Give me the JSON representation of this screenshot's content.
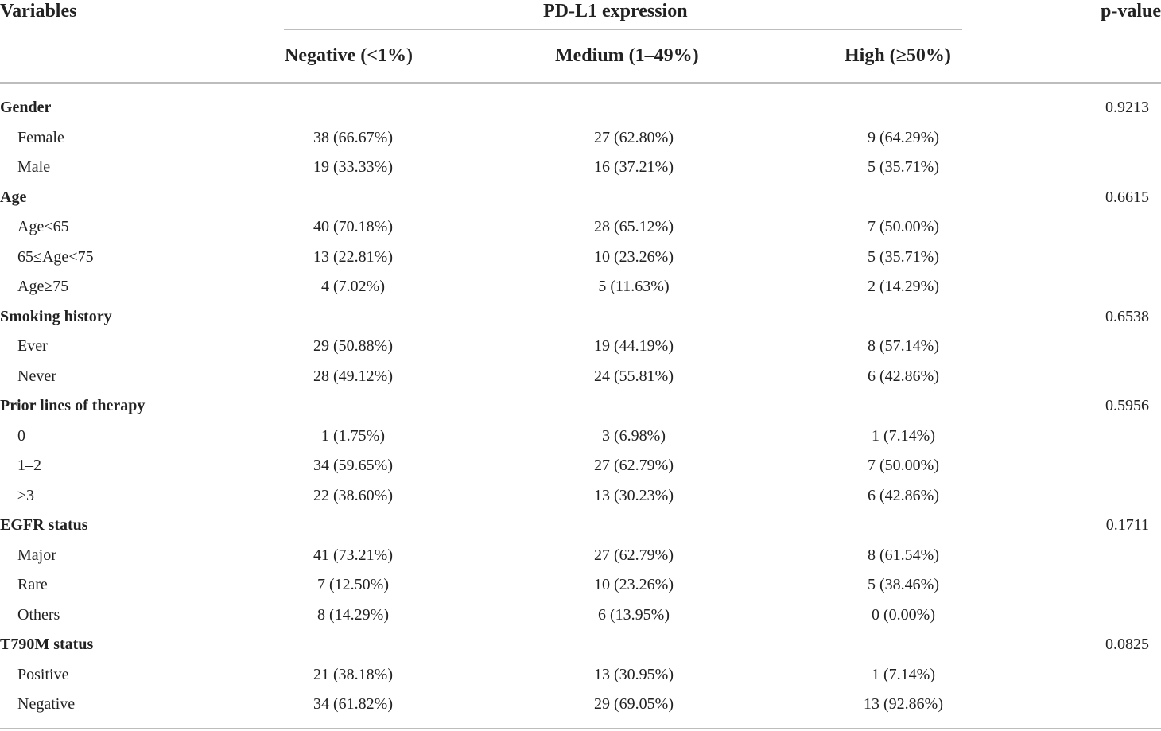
{
  "header": {
    "variables": "Variables",
    "group_title": "PD-L1 expression",
    "p_value": "p-value",
    "columns": [
      "Negative (<1%)",
      "Medium (1–49%)",
      "High (≥50%)"
    ]
  },
  "rows": [
    {
      "type": "group",
      "label": "Gender",
      "p": "0.9213"
    },
    {
      "type": "item",
      "label": "Female",
      "values": [
        "38 (66.67%)",
        "27 (62.80%)",
        "9 (64.29%)"
      ]
    },
    {
      "type": "item",
      "label": "Male",
      "values": [
        "19 (33.33%)",
        "16 (37.21%)",
        "5 (35.71%)"
      ]
    },
    {
      "type": "group",
      "label": "Age",
      "p": "0.6615"
    },
    {
      "type": "item",
      "label": "Age<65",
      "values": [
        "40 (70.18%)",
        "28 (65.12%)",
        "7 (50.00%)"
      ]
    },
    {
      "type": "item",
      "label": "65≤Age<75",
      "values": [
        "13 (22.81%)",
        "10 (23.26%)",
        "5 (35.71%)"
      ]
    },
    {
      "type": "item",
      "label": "Age≥75",
      "values": [
        "4 (7.02%)",
        "5 (11.63%)",
        "2 (14.29%)"
      ]
    },
    {
      "type": "group",
      "label": "Smoking history",
      "p": "0.6538"
    },
    {
      "type": "item",
      "label": "Ever",
      "values": [
        "29 (50.88%)",
        "19 (44.19%)",
        "8 (57.14%)"
      ]
    },
    {
      "type": "item",
      "label": "Never",
      "values": [
        "28 (49.12%)",
        "24 (55.81%)",
        "6 (42.86%)"
      ]
    },
    {
      "type": "group",
      "label": "Prior lines of therapy",
      "p": "0.5956"
    },
    {
      "type": "item",
      "label": "0",
      "values": [
        "1 (1.75%)",
        "3 (6.98%)",
        "1 (7.14%)"
      ]
    },
    {
      "type": "item",
      "label": "1–2",
      "values": [
        "34 (59.65%)",
        "27 (62.79%)",
        "7 (50.00%)"
      ]
    },
    {
      "type": "item",
      "label": "≥3",
      "values": [
        "22 (38.60%)",
        "13 (30.23%)",
        "6 (42.86%)"
      ]
    },
    {
      "type": "group",
      "label": "EGFR status",
      "p": "0.1711"
    },
    {
      "type": "item",
      "label": "Major",
      "values": [
        "41 (73.21%)",
        "27 (62.79%)",
        "8 (61.54%)"
      ]
    },
    {
      "type": "item",
      "label": "Rare",
      "values": [
        "7 (12.50%)",
        "10 (23.26%)",
        "5 (38.46%)"
      ]
    },
    {
      "type": "item",
      "label": "Others",
      "values": [
        "8 (14.29%)",
        "6 (13.95%)",
        "0 (0.00%)"
      ]
    },
    {
      "type": "group",
      "label": "T790M status",
      "p": "0.0825"
    },
    {
      "type": "item",
      "label": "Positive",
      "values": [
        "21 (38.18%)",
        "13 (30.95%)",
        "1 (7.14%)"
      ]
    },
    {
      "type": "item",
      "label": "Negative",
      "values": [
        "34 (61.82%)",
        "29 (69.05%)",
        "13 (92.86%)"
      ]
    }
  ]
}
